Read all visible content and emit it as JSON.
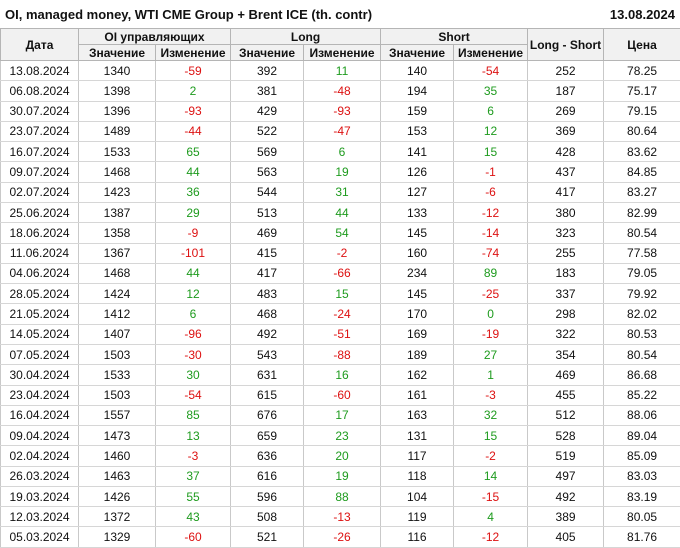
{
  "title": "OI, managed money, WTI CME Group + Brent ICE (th. contr)",
  "report_date": "13.08.2024",
  "columns": {
    "date": "Дата",
    "oi_group": "OI управляющих",
    "long_group": "Long",
    "short_group": "Short",
    "net": "Long - Short",
    "price": "Цена",
    "value": "Значение",
    "change": "Изменение"
  },
  "colors": {
    "positive": "#1e9b1e",
    "negative": "#dd1111",
    "header_bg": "#f1f1f1",
    "grid": "#d6d6d6"
  },
  "chart_data": {
    "type": "table",
    "title": "OI, managed money, WTI CME Group + Brent ICE (th. contr)",
    "as_of_date": "13.08.2024",
    "columns": [
      "Дата",
      "OI Значение",
      "OI Изменение",
      "Long Значение",
      "Long Изменение",
      "Short Значение",
      "Short Изменение",
      "Long - Short",
      "Цена"
    ],
    "rows": [
      [
        "13.08.2024",
        1340,
        -59,
        392,
        11,
        140,
        -54,
        252,
        78.25
      ],
      [
        "06.08.2024",
        1398,
        2,
        381,
        -48,
        194,
        35,
        187,
        75.17
      ],
      [
        "30.07.2024",
        1396,
        -93,
        429,
        -93,
        159,
        6,
        269,
        79.15
      ],
      [
        "23.07.2024",
        1489,
        -44,
        522,
        -47,
        153,
        12,
        369,
        80.64
      ],
      [
        "16.07.2024",
        1533,
        65,
        569,
        6,
        141,
        15,
        428,
        83.62
      ],
      [
        "09.07.2024",
        1468,
        44,
        563,
        19,
        126,
        -1,
        437,
        84.85
      ],
      [
        "02.07.2024",
        1423,
        36,
        544,
        31,
        127,
        -6,
        417,
        83.27
      ],
      [
        "25.06.2024",
        1387,
        29,
        513,
        44,
        133,
        -12,
        380,
        82.99
      ],
      [
        "18.06.2024",
        1358,
        -9,
        469,
        54,
        145,
        -14,
        323,
        80.54
      ],
      [
        "11.06.2024",
        1367,
        -101,
        415,
        -2,
        160,
        -74,
        255,
        77.58
      ],
      [
        "04.06.2024",
        1468,
        44,
        417,
        -66,
        234,
        89,
        183,
        79.05
      ],
      [
        "28.05.2024",
        1424,
        12,
        483,
        15,
        145,
        -25,
        337,
        79.92
      ],
      [
        "21.05.2024",
        1412,
        6,
        468,
        -24,
        170,
        0,
        298,
        82.02
      ],
      [
        "14.05.2024",
        1407,
        -96,
        492,
        -51,
        169,
        -19,
        322,
        80.53
      ],
      [
        "07.05.2024",
        1503,
        -30,
        543,
        -88,
        189,
        27,
        354,
        80.54
      ],
      [
        "30.04.2024",
        1533,
        30,
        631,
        16,
        162,
        1,
        469,
        86.68
      ],
      [
        "23.04.2024",
        1503,
        -54,
        615,
        -60,
        161,
        -3,
        455,
        85.22
      ],
      [
        "16.04.2024",
        1557,
        85,
        676,
        17,
        163,
        32,
        512,
        88.06
      ],
      [
        "09.04.2024",
        1473,
        13,
        659,
        23,
        131,
        15,
        528,
        89.04
      ],
      [
        "02.04.2024",
        1460,
        -3,
        636,
        20,
        117,
        -2,
        519,
        85.09
      ],
      [
        "26.03.2024",
        1463,
        37,
        616,
        19,
        118,
        14,
        497,
        83.03
      ],
      [
        "19.03.2024",
        1426,
        55,
        596,
        88,
        104,
        -15,
        492,
        83.19
      ],
      [
        "12.03.2024",
        1372,
        43,
        508,
        -13,
        119,
        4,
        389,
        80.05
      ],
      [
        "05.03.2024",
        1329,
        -60,
        521,
        -26,
        116,
        -12,
        405,
        81.76
      ]
    ]
  }
}
